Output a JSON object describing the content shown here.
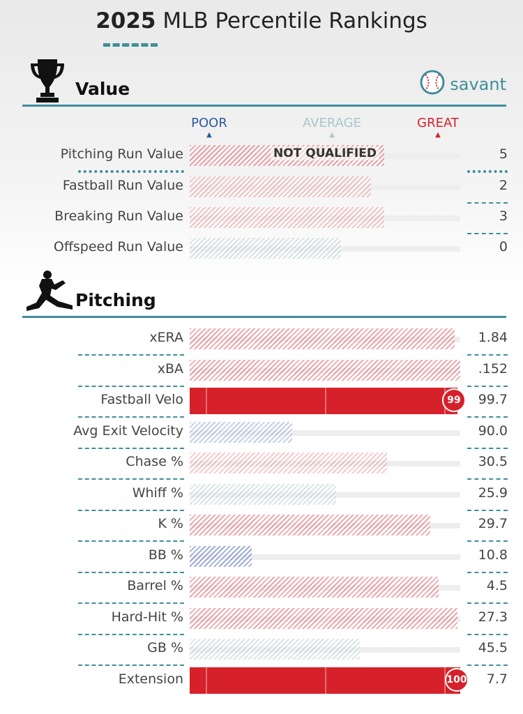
{
  "header": {
    "year": "2025",
    "title_rest": "MLB Percentile Rankings"
  },
  "value_section": {
    "title": "Value",
    "icon": "trophy-icon",
    "brand_text": "savant"
  },
  "scale": {
    "poor": "POOR",
    "average": "AVERAGE",
    "great": "GREAT",
    "poor_color": "#2c5aa0",
    "average_color": "#a9c7cc",
    "great_color": "#d6212a"
  },
  "value_rows": [
    {
      "label": "Pitching Run Value",
      "value": "5",
      "percentile": 72,
      "style": "hatch-red",
      "note": "NOT QUALIFIED"
    },
    {
      "label": "Fastball Run Value",
      "value": "2",
      "percentile": 67,
      "style": "hatch-red-light"
    },
    {
      "label": "Breaking Run Value",
      "value": "3",
      "percentile": 72,
      "style": "hatch-red-light"
    },
    {
      "label": "Offspeed Run Value",
      "value": "0",
      "percentile": 56,
      "style": "hatch-grey"
    }
  ],
  "pitching_section": {
    "title": "Pitching",
    "icon": "pitcher-silhouette-icon"
  },
  "pitching_rows": [
    {
      "label": "xERA",
      "value": "1.84",
      "percentile": 98,
      "style": "hatch-red"
    },
    {
      "label": "xBA",
      "value": ".152",
      "percentile": 100,
      "style": "hatch-red"
    },
    {
      "label": "Fastball Velo",
      "value": "99.7",
      "percentile": 99,
      "style": "solid-red",
      "badge": "99"
    },
    {
      "label": "Avg Exit Velocity",
      "value": "90.0",
      "percentile": 38,
      "style": "hatch-blue"
    },
    {
      "label": "Chase %",
      "value": "30.5",
      "percentile": 73,
      "style": "hatch-red-light"
    },
    {
      "label": "Whiff %",
      "value": "25.9",
      "percentile": 54,
      "style": "hatch-grey"
    },
    {
      "label": "K %",
      "value": "29.7",
      "percentile": 89,
      "style": "hatch-red"
    },
    {
      "label": "BB %",
      "value": "10.8",
      "percentile": 23,
      "style": "hatch-blue-dark"
    },
    {
      "label": "Barrel %",
      "value": "4.5",
      "percentile": 92,
      "style": "hatch-red"
    },
    {
      "label": "Hard-Hit %",
      "value": "27.3",
      "percentile": 99,
      "style": "hatch-red"
    },
    {
      "label": "GB %",
      "value": "45.5",
      "percentile": 63,
      "style": "hatch-grey"
    },
    {
      "label": "Extension",
      "value": "7.7",
      "percentile": 100,
      "style": "solid-red",
      "badge": "100"
    }
  ]
}
